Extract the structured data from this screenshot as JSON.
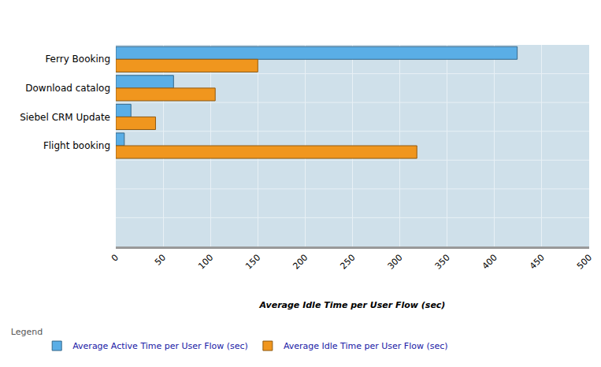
{
  "chart_data": {
    "type": "bar",
    "orientation": "horizontal",
    "categories": [
      "Ferry Booking",
      "Download catalog",
      "Siebel CRM Update",
      "Flight booking",
      null,
      null,
      null
    ],
    "series": [
      {
        "name": "Average Active Time per User Flow (sec)",
        "color": "#5aaee6",
        "values": [
          424,
          61,
          16,
          9,
          null,
          null,
          null
        ]
      },
      {
        "name": "Average Idle Time per User Flow (sec)",
        "color": "#f0961e",
        "values": [
          150,
          105,
          42,
          318,
          null,
          null,
          null
        ]
      }
    ],
    "x_label": "Average Idle Time per User Flow (sec)",
    "xlim": [
      0,
      500
    ],
    "xticks": [
      0,
      50,
      100,
      150,
      200,
      250,
      300,
      350,
      400,
      450,
      500
    ],
    "grid": true,
    "legend": "bottom left",
    "legend_title": "Legend"
  }
}
